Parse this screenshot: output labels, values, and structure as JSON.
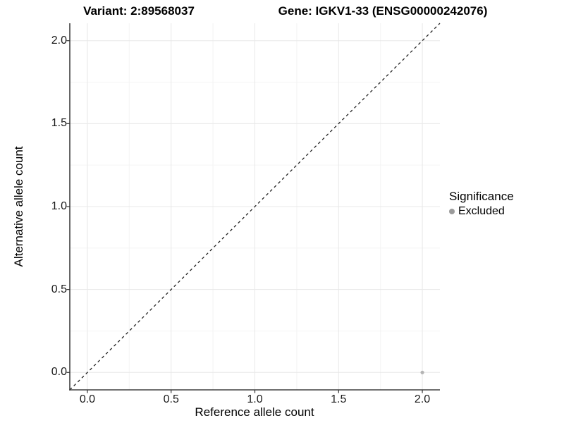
{
  "chart_data": {
    "type": "scatter",
    "title_left": "Variant: 2:89568037",
    "title_right": "Gene: IGKV1-33 (ENSG00000242076)",
    "xlabel": "Reference allele count",
    "ylabel": "Alternative allele count",
    "xlim": [
      -0.105,
      2.105
    ],
    "ylim": [
      -0.105,
      2.105
    ],
    "xticks": [
      0.0,
      0.5,
      1.0,
      1.5,
      2.0
    ],
    "yticks": [
      0.0,
      0.5,
      1.0,
      1.5,
      2.0
    ],
    "xtick_labels": [
      "0.0",
      "0.5",
      "1.0",
      "1.5",
      "2.0"
    ],
    "ytick_labels": [
      "0.0",
      "0.5",
      "1.0",
      "1.5",
      "2.0"
    ],
    "minor_xticks": [
      0.25,
      0.75,
      1.25,
      1.75
    ],
    "minor_yticks": [
      0.25,
      0.75,
      1.25,
      1.75
    ],
    "grid": "major+minor",
    "reference_line": {
      "type": "identity",
      "style": "dashed",
      "from": [
        -0.105,
        -0.105
      ],
      "to": [
        2.105,
        2.105
      ]
    },
    "series": [
      {
        "name": "Excluded",
        "points": [
          [
            2.0,
            0.0
          ]
        ]
      }
    ],
    "legend": {
      "title": "Significance",
      "position": "right",
      "entries": [
        {
          "label": "Excluded",
          "color": "#9b9b9b"
        }
      ]
    }
  },
  "style": {
    "background": "#ffffff",
    "grid_major": "#e8e8e8",
    "grid_minor": "#f4f4f4",
    "axis_line": "#404040",
    "tick_color": "#333333",
    "diagonal_color": "#222222",
    "point_color": "#b4b4b4",
    "point_radius": 2.6,
    "text_color": "#000000"
  }
}
